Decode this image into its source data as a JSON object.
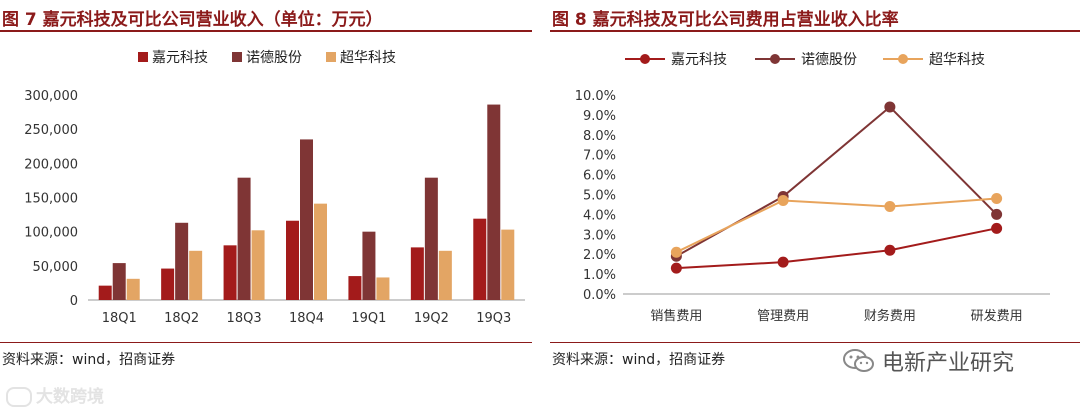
{
  "figures": [
    {
      "title": "图 7  嘉元科技及可比公司营业收入（单位：万元）",
      "source": "资料来源：wind，招商证券",
      "chart_data": {
        "type": "bar",
        "title": "嘉元科技及可比公司营业收入（单位：万元）",
        "categories": [
          "18Q1",
          "18Q2",
          "18Q3",
          "18Q4",
          "19Q1",
          "19Q2",
          "19Q3"
        ],
        "series": [
          {
            "name": "嘉元科技",
            "color": "#a31b1b",
            "values": [
              21000,
              46000,
              80000,
              116000,
              35000,
              77000,
              119000
            ]
          },
          {
            "name": "诺德股份",
            "color": "#7f3535",
            "values": [
              54000,
              113000,
              179000,
              235000,
              100000,
              179000,
              286000
            ]
          },
          {
            "name": "超华科技",
            "color": "#e3a564",
            "values": [
              31000,
              72000,
              102000,
              141000,
              33000,
              72000,
              103000
            ]
          }
        ],
        "yticks": [
          "0",
          "50,000",
          "100,000",
          "150,000",
          "200,000",
          "250,000",
          "300,000"
        ],
        "ylim": [
          0,
          300000
        ],
        "xlabel": "",
        "ylabel": "",
        "legend_position": "top"
      }
    },
    {
      "title": "图 8  嘉元科技及可比公司费用占营业收入比率",
      "source": "资料来源：wind，招商证券",
      "chart_data": {
        "type": "line",
        "title": "嘉元科技及可比公司费用占营业收入比率",
        "categories": [
          "销售费用",
          "管理费用",
          "财务费用",
          "研发费用"
        ],
        "series": [
          {
            "name": "嘉元科技",
            "color": "#a31b1b",
            "values": [
              1.3,
              1.6,
              2.2,
              3.3
            ]
          },
          {
            "name": "诺德股份",
            "color": "#7f3535",
            "values": [
              1.9,
              4.9,
              9.4,
              4.0
            ]
          },
          {
            "name": "超华科技",
            "color": "#e8a45c",
            "values": [
              2.1,
              4.7,
              4.4,
              4.8
            ]
          }
        ],
        "yticks": [
          "0.0%",
          "1.0%",
          "2.0%",
          "3.0%",
          "4.0%",
          "5.0%",
          "6.0%",
          "7.0%",
          "8.0%",
          "9.0%",
          "10.0%"
        ],
        "ylim": [
          0,
          10
        ],
        "xlabel": "",
        "ylabel": "",
        "legend_position": "top"
      }
    }
  ],
  "watermarks": {
    "left": "大数跨境",
    "right": "电新产业研究"
  }
}
